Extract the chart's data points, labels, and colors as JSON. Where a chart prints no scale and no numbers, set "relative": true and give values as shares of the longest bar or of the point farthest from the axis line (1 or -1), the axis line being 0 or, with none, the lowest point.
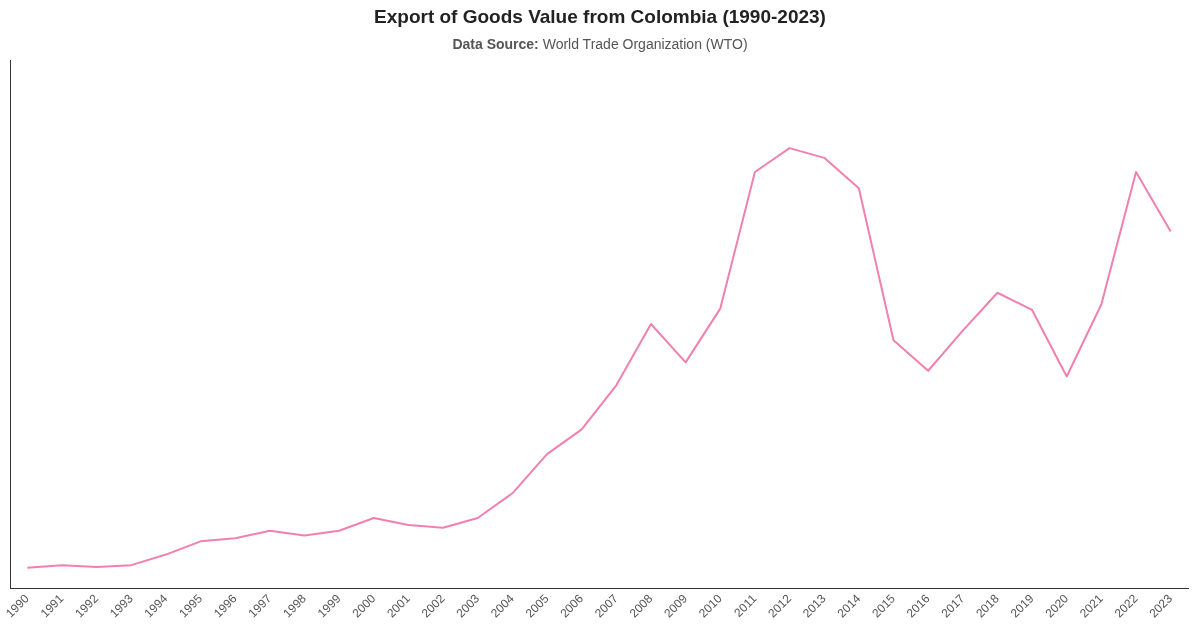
{
  "chart_data": {
    "type": "line",
    "title": "Export of Goods Value from Colombia (1990-2023)",
    "subtitle": "Data Source: World Trade Organization (WTO)",
    "relative": true,
    "categories": [
      "1990",
      "1991",
      "1992",
      "1993",
      "1994",
      "1995",
      "1996",
      "1997",
      "1998",
      "1999",
      "2000",
      "2001",
      "2002",
      "2003",
      "2004",
      "2005",
      "2006",
      "2007",
      "2008",
      "2009",
      "2010",
      "2011",
      "2012",
      "2013",
      "2014",
      "2015",
      "2016",
      "2017",
      "2018",
      "2019",
      "2020",
      "2021",
      "2022",
      "2023"
    ],
    "series": [
      {
        "color": "#f080b0",
        "values": [
          0.048,
          0.054,
          0.05,
          0.054,
          0.078,
          0.108,
          0.115,
          0.132,
          0.121,
          0.132,
          0.161,
          0.145,
          0.139,
          0.161,
          0.217,
          0.306,
          0.362,
          0.462,
          0.601,
          0.514,
          0.636,
          0.946,
          1,
          0.978,
          0.909,
          0.564,
          0.495,
          0.586,
          0.672,
          0.633,
          0.482,
          0.646,
          0.946,
          0.811
        ]
      }
    ],
    "grid": false,
    "legend": false,
    "marker": "none",
    "line_style": "solid"
  }
}
